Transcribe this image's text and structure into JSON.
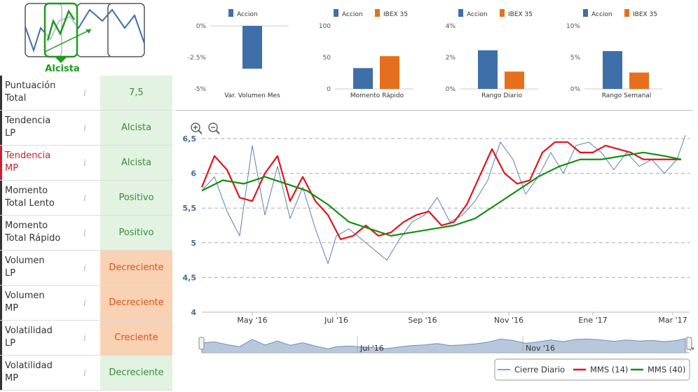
{
  "trend": {
    "label": "Alcista"
  },
  "metrics": [
    {
      "label_1": "Puntuación",
      "label_2": "Total",
      "value": "7,5",
      "color": "green",
      "highlight": false
    },
    {
      "label_1": "Tendencia",
      "label_2": "LP",
      "value": "Alcista",
      "color": "green",
      "highlight": false
    },
    {
      "label_1": "Tendencia",
      "label_2": "MP",
      "value": "Alcista",
      "color": "green",
      "highlight": true
    },
    {
      "label_1": "Momento",
      "label_2": "Total Lento",
      "value": "Positivo",
      "color": "green",
      "highlight": false
    },
    {
      "label_1": "Momento",
      "label_2": "Total Rápido",
      "value": "Positivo",
      "color": "green",
      "highlight": false
    },
    {
      "label_1": "Volumen",
      "label_2": "LP",
      "value": "Decreciente",
      "color": "orange",
      "highlight": false
    },
    {
      "label_1": "Volumen",
      "label_2": "MP",
      "value": "Decreciente",
      "color": "orange",
      "highlight": false
    },
    {
      "label_1": "Volatilidad",
      "label_2": "LP",
      "value": "Creciente",
      "color": "orange",
      "highlight": false
    },
    {
      "label_1": "Volatilidad",
      "label_2": "MP",
      "value": "Decreciente",
      "color": "green",
      "highlight": false
    }
  ],
  "info_glyph": "i",
  "colors": {
    "accion": "#3f6fa8",
    "ibex": "#e66f1d",
    "cierre": "#5a7fb8",
    "mms14": "#e0141f",
    "mms40": "#138f13",
    "green_bg": "#e2f3e2",
    "orange_bg": "#f9d1b3"
  },
  "chart_data": [
    {
      "type": "bar",
      "title": "Var. Volumen Mes",
      "series": [
        {
          "name": "Accion",
          "values": [
            -3.4
          ]
        }
      ],
      "yticks": [
        "0%",
        "-2.5%",
        "-5%"
      ],
      "ylim": [
        -5,
        0
      ]
    },
    {
      "type": "bar",
      "title": "Momento Rápido",
      "series": [
        {
          "name": "Accion",
          "values": [
            33
          ]
        },
        {
          "name": "IBEX 35",
          "values": [
            52
          ]
        }
      ],
      "yticks": [
        "100",
        "50",
        "0"
      ],
      "ylim": [
        0,
        100
      ]
    },
    {
      "type": "bar",
      "title": "Rango Diario",
      "series": [
        {
          "name": "Accion",
          "values": [
            2.45
          ]
        },
        {
          "name": "IBEX 35",
          "values": [
            1.1
          ]
        }
      ],
      "yticks": [
        "4%",
        "2%",
        "0%"
      ],
      "ylim": [
        0,
        4
      ]
    },
    {
      "type": "bar",
      "title": "Rango Semanal",
      "series": [
        {
          "name": "Accion",
          "values": [
            6.0
          ]
        },
        {
          "name": "IBEX 35",
          "values": [
            2.6
          ]
        }
      ],
      "yticks": [
        "10%",
        "5%",
        "0%"
      ],
      "ylim": [
        0,
        10
      ]
    },
    {
      "type": "line",
      "xlabels": [
        "May '16",
        "Jul '16",
        "Sep '16",
        "Nov '16",
        "Ene '17",
        "Mar '17"
      ],
      "xlabel_pos": [
        1.2,
        3.2,
        5.25,
        7.3,
        9.3,
        11.2
      ],
      "yticks": [
        "6,5",
        "6",
        "5,5",
        "5",
        "4,5",
        "4"
      ],
      "ylim": [
        4,
        6.5
      ],
      "navigator_labels": [
        "Jul '16",
        "Nov '16",
        "Ma"
      ],
      "series": [
        {
          "name": "Cierre Diario",
          "x": [
            0,
            0.3,
            0.6,
            0.9,
            1.2,
            1.5,
            1.8,
            2.1,
            2.4,
            2.7,
            3.0,
            3.2,
            3.5,
            3.8,
            4.1,
            4.4,
            4.7,
            5.0,
            5.3,
            5.6,
            5.9,
            6.2,
            6.5,
            6.8,
            7.1,
            7.4,
            7.7,
            8.0,
            8.3,
            8.6,
            8.9,
            9.2,
            9.5,
            9.8,
            10.1,
            10.4,
            10.7,
            11.0,
            11.3,
            11.5
          ],
          "y": [
            5.75,
            5.95,
            5.45,
            5.1,
            6.4,
            5.4,
            6.1,
            5.35,
            5.8,
            5.2,
            4.7,
            5.1,
            5.2,
            5.05,
            4.9,
            4.75,
            5.05,
            5.3,
            5.4,
            5.65,
            5.3,
            5.4,
            5.6,
            5.9,
            6.45,
            6.2,
            5.7,
            5.95,
            6.3,
            6.0,
            6.4,
            6.45,
            6.3,
            6.05,
            6.3,
            6.1,
            6.2,
            6.0,
            6.2,
            6.55
          ]
        },
        {
          "name": "MMS (14)",
          "x": [
            0,
            0.3,
            0.6,
            0.9,
            1.2,
            1.5,
            1.8,
            2.1,
            2.4,
            2.7,
            3.0,
            3.3,
            3.6,
            3.9,
            4.2,
            4.5,
            4.8,
            5.1,
            5.4,
            5.7,
            6.0,
            6.3,
            6.6,
            6.9,
            7.2,
            7.5,
            7.8,
            8.1,
            8.4,
            8.7,
            9.0,
            9.3,
            9.6,
            9.9,
            10.2,
            10.5,
            10.8,
            11.1,
            11.4
          ],
          "y": [
            5.8,
            6.25,
            6.05,
            5.65,
            5.6,
            6.0,
            6.25,
            5.6,
            5.95,
            5.6,
            5.4,
            5.05,
            5.1,
            5.25,
            5.1,
            5.15,
            5.3,
            5.4,
            5.45,
            5.25,
            5.3,
            5.55,
            5.95,
            6.35,
            6.0,
            5.85,
            5.9,
            6.3,
            6.45,
            6.45,
            6.3,
            6.3,
            6.4,
            6.35,
            6.3,
            6.2,
            6.2,
            6.2,
            6.2
          ]
        },
        {
          "name": "MMS (40)",
          "x": [
            0,
            0.5,
            1.0,
            1.5,
            2.0,
            2.5,
            3.0,
            3.5,
            4.0,
            4.5,
            5.0,
            5.5,
            6.0,
            6.5,
            7.0,
            7.5,
            8.0,
            8.5,
            9.0,
            9.5,
            10.0,
            10.5,
            11.0,
            11.4
          ],
          "y": [
            5.75,
            5.9,
            5.85,
            5.95,
            5.85,
            5.75,
            5.55,
            5.3,
            5.2,
            5.1,
            5.15,
            5.2,
            5.25,
            5.35,
            5.55,
            5.75,
            5.95,
            6.1,
            6.2,
            6.2,
            6.25,
            6.3,
            6.25,
            6.2
          ]
        }
      ]
    }
  ]
}
